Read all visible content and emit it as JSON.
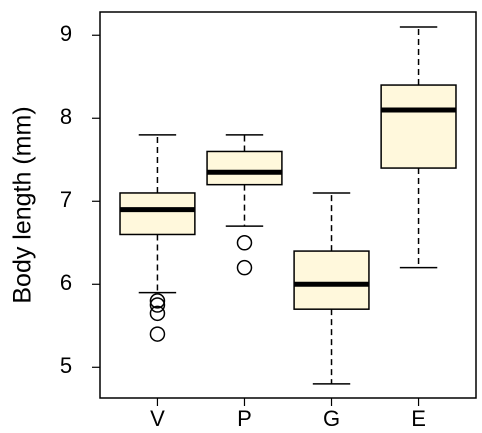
{
  "chart_data": {
    "type": "boxplot",
    "y_label": "Body length (mm)",
    "categories": [
      "V",
      "P",
      "G",
      "E"
    ],
    "color": "#fff8dc",
    "whisker_low": [
      5.9,
      6.7,
      4.8,
      6.2
    ],
    "q1": [
      6.6,
      7.2,
      5.7,
      7.4
    ],
    "median": [
      6.9,
      7.35,
      6.0,
      8.1
    ],
    "q3": [
      7.1,
      7.6,
      6.4,
      8.4
    ],
    "whisker_high": [
      7.8,
      7.8,
      7.1,
      9.1
    ],
    "outliers": [
      [
        5.8,
        5.75,
        5.65,
        5.4
      ],
      [
        6.5,
        6.2
      ],
      [],
      []
    ],
    "ylim": [
      4.63,
      9.28
    ],
    "yticks": [
      5,
      6,
      7,
      8,
      9
    ]
  }
}
